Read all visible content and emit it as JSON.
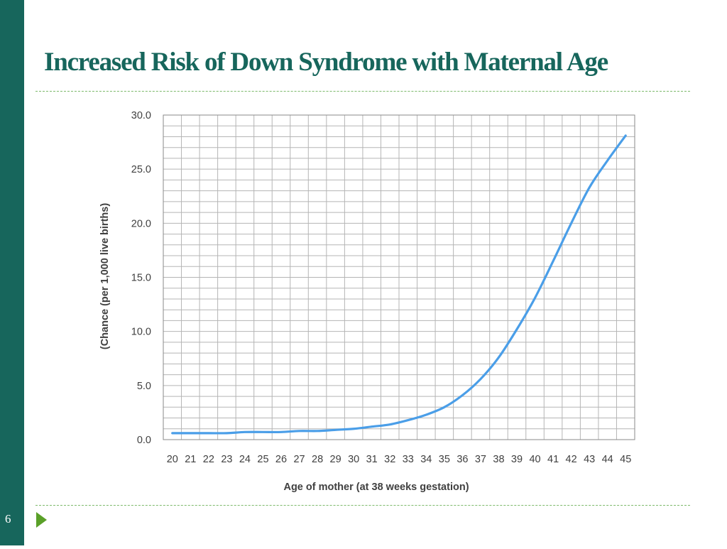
{
  "slide": {
    "title": "Increased Risk of Down Syndrome with Maternal Age",
    "number": "6",
    "accent_color": "#17665c",
    "divider_color": "#7cb96a",
    "nav_icon": "play-triangle-icon",
    "nav_icon_color": "#5aa028"
  },
  "chart_data": {
    "type": "line",
    "title": "",
    "xlabel": "Age of mother (at 38 weeks gestation)",
    "ylabel": "(Chance (per 1,000 live births)",
    "x": [
      20,
      21,
      22,
      23,
      24,
      25,
      26,
      27,
      28,
      29,
      30,
      31,
      32,
      33,
      34,
      35,
      36,
      37,
      38,
      39,
      40,
      41,
      42,
      43,
      44,
      45
    ],
    "series": [
      {
        "name": "",
        "color": "#4a9ee8",
        "values": [
          0.6,
          0.6,
          0.6,
          0.6,
          0.7,
          0.7,
          0.7,
          0.8,
          0.8,
          0.9,
          1.0,
          1.2,
          1.4,
          1.8,
          2.3,
          3.0,
          4.1,
          5.6,
          7.6,
          10.2,
          13.1,
          16.5,
          20.0,
          23.3,
          25.8,
          28.1
        ]
      }
    ],
    "xlim": [
      19.5,
      45.5
    ],
    "ylim": [
      0,
      30
    ],
    "y_ticks": [
      "0.0",
      "5.0",
      "10.0",
      "15.0",
      "20.0",
      "25.0",
      "30.0"
    ],
    "x_ticks": [
      "20",
      "21",
      "22",
      "23",
      "24",
      "25",
      "26",
      "27",
      "28",
      "29",
      "30",
      "31",
      "32",
      "33",
      "34",
      "35",
      "36",
      "37",
      "38",
      "39",
      "40",
      "41",
      "42",
      "43",
      "44",
      "45"
    ],
    "grid": true,
    "y_minor_step": 1,
    "legend": "none"
  }
}
